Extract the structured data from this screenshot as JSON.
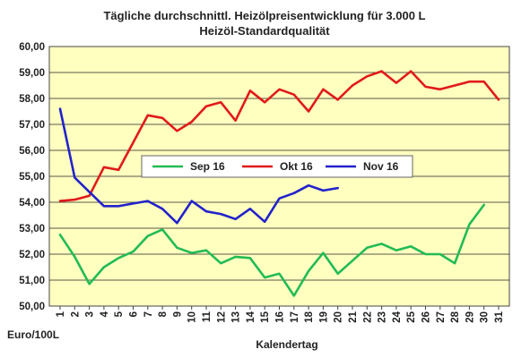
{
  "chart_data": {
    "type": "line",
    "title": "Tägliche durchschnittl. Heizölpreisentwicklung für 3.000 L",
    "subtitle": "Heizöl-Standardqualität",
    "xlabel": "Kalendertag",
    "ylabel": "Euro/100L",
    "ylim": [
      50,
      60
    ],
    "yticks": [
      "50,00",
      "51,00",
      "52,00",
      "53,00",
      "54,00",
      "55,00",
      "56,00",
      "57,00",
      "58,00",
      "59,00",
      "60,00"
    ],
    "x": [
      1,
      2,
      3,
      4,
      5,
      6,
      7,
      8,
      9,
      10,
      11,
      12,
      13,
      14,
      15,
      16,
      17,
      18,
      19,
      20,
      21,
      22,
      23,
      24,
      25,
      26,
      27,
      28,
      29,
      30,
      31
    ],
    "grid": true,
    "legend_placement": "center",
    "colors": {
      "plot_bg": "#FFFFC0",
      "grid": "#222222",
      "sep": "#22BB55",
      "okt": "#E11A1A",
      "nov": "#2222CC"
    },
    "series": [
      {
        "name": "Sep 16",
        "values": [
          52.75,
          51.9,
          50.85,
          51.5,
          51.85,
          52.1,
          52.7,
          52.95,
          52.25,
          52.05,
          52.15,
          51.65,
          51.9,
          51.85,
          51.1,
          51.25,
          50.4,
          51.35,
          52.05,
          51.25,
          51.75,
          52.25,
          52.4,
          52.15,
          52.3,
          52.0,
          52.0,
          51.65,
          53.15,
          53.9,
          null
        ]
      },
      {
        "name": "Okt 16",
        "values": [
          54.05,
          54.1,
          54.25,
          55.35,
          55.25,
          56.3,
          57.35,
          57.25,
          56.75,
          57.1,
          57.7,
          57.85,
          57.15,
          58.3,
          57.85,
          58.35,
          58.15,
          57.5,
          58.35,
          57.95,
          58.5,
          58.85,
          59.05,
          58.6,
          59.05,
          58.45,
          58.35,
          58.5,
          58.65,
          58.65,
          57.95
        ]
      },
      {
        "name": "Nov 16",
        "values": [
          57.6,
          54.95,
          54.4,
          53.85,
          53.85,
          53.95,
          54.05,
          53.75,
          53.2,
          54.05,
          53.65,
          53.55,
          53.35,
          53.75,
          53.25,
          54.15,
          54.35,
          54.65,
          54.45,
          54.55,
          null,
          null,
          null,
          null,
          null,
          null,
          null,
          null,
          null,
          null,
          null
        ]
      }
    ]
  }
}
